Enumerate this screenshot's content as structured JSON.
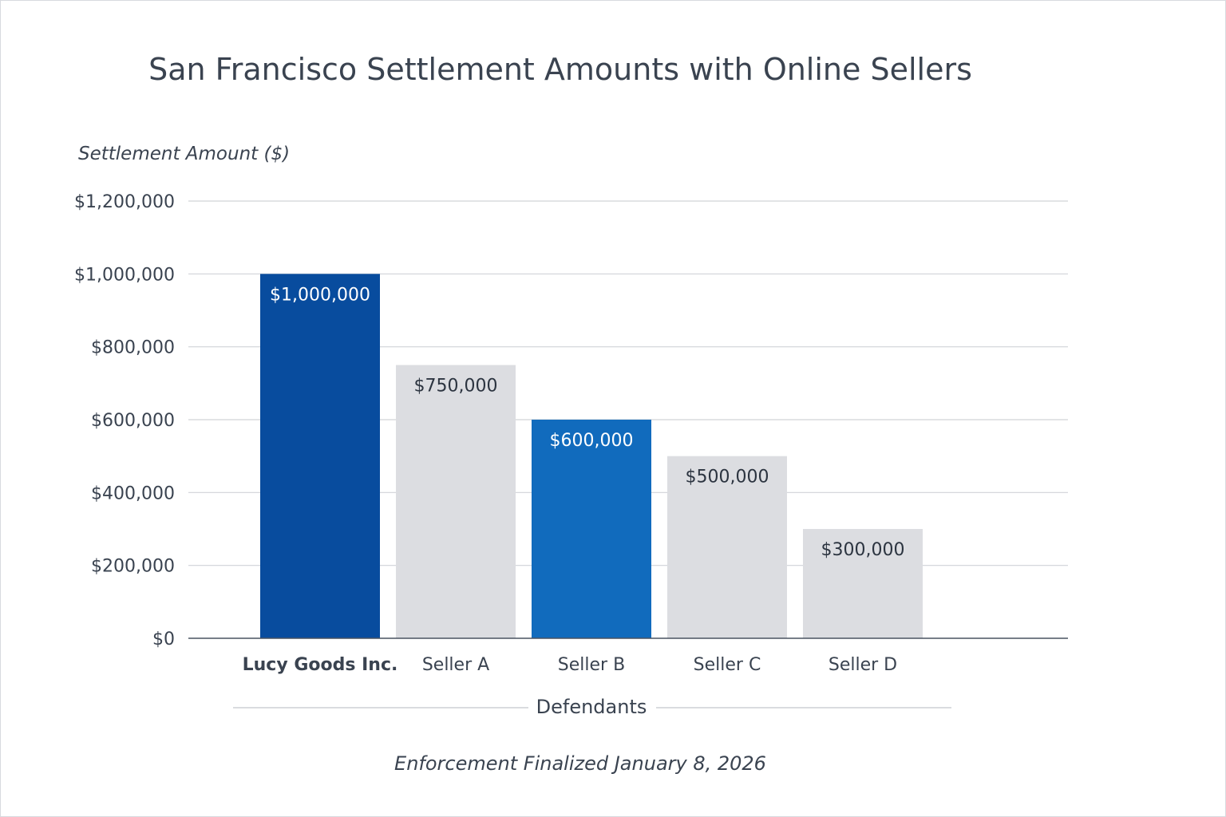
{
  "chart_data": {
    "type": "bar",
    "title": "San Francisco Settlement Amounts with Online Sellers",
    "ylabel": "Settlement Amount ($)",
    "xlabel": "Defendants",
    "footer": "Enforcement Finalized January 8, 2026",
    "ylim": [
      0,
      1200000
    ],
    "grid": true,
    "yticks": [
      {
        "value": 0,
        "label": "$0"
      },
      {
        "value": 200000,
        "label": "$200,000"
      },
      {
        "value": 400000,
        "label": "$400,000"
      },
      {
        "value": 600000,
        "label": "$600,000"
      },
      {
        "value": 800000,
        "label": "$800,000"
      },
      {
        "value": 1000000,
        "label": "$1,000,000"
      },
      {
        "value": 1200000,
        "label": "$1,200,000"
      }
    ],
    "categories": [
      "Lucy Goods Inc.",
      "Seller A",
      "Seller B",
      "Seller C",
      "Seller D"
    ],
    "values": [
      1000000,
      750000,
      600000,
      500000,
      300000
    ],
    "data_labels": [
      "$1,000,000",
      "$750,000",
      "$600,000",
      "$500,000",
      "$300,000"
    ],
    "bar_colors": [
      "#084c9e",
      "#dcdde1",
      "#116bbd",
      "#dcdde1",
      "#dcdde1"
    ],
    "label_colors": [
      "#ffffff",
      "#2c3440",
      "#ffffff",
      "#2c3440",
      "#2c3440"
    ],
    "highlighted_category": "Lucy Goods Inc."
  }
}
